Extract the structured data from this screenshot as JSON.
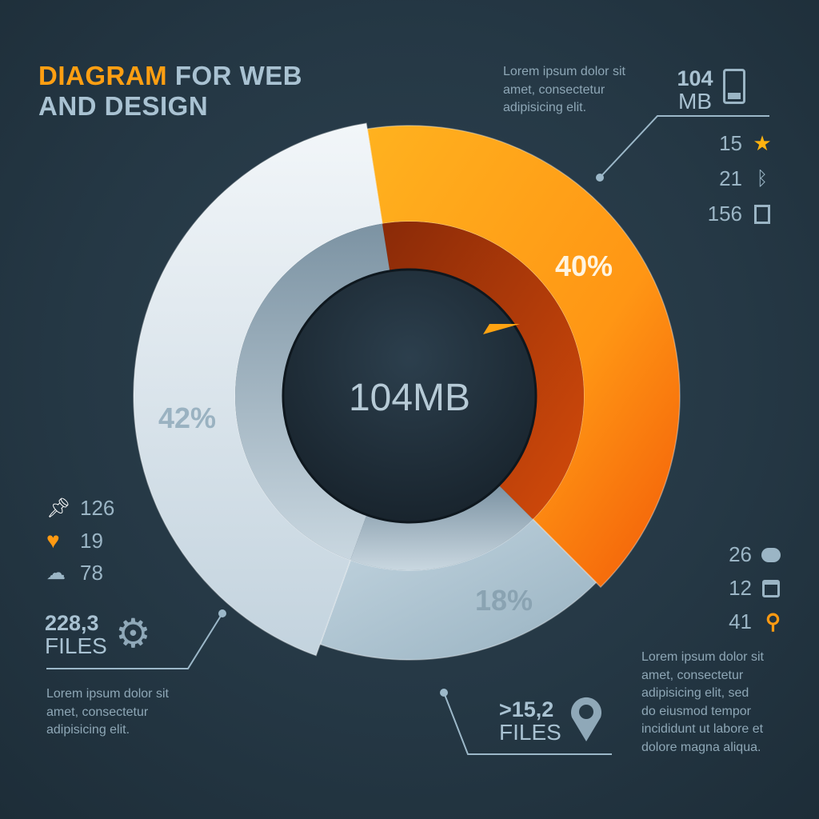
{
  "title": {
    "accent": "DIAGRAM",
    "rest_line1": " FOR WEB",
    "line2": "AND DESIGN"
  },
  "colors": {
    "accent": "#ff9f12",
    "background": "#263945",
    "text": "#a9c2d2",
    "orange": "#ff9a1a",
    "light": "#dfe9f0",
    "grey_blue": "#a6bfcd"
  },
  "center_label": "104MB",
  "chart_data": {
    "type": "pie",
    "style": "donut",
    "categories": [
      "orange segment",
      "blue-grey segment",
      "white segment"
    ],
    "values": [
      40,
      18,
      42
    ],
    "labels": [
      "40%",
      "18%",
      "42%"
    ],
    "colors": [
      "#ff9a1a",
      "#a6bfcd",
      "#dfe9f0"
    ]
  },
  "top_right": {
    "text": [
      "Lorem ipsum dolor sit",
      "amet, consectetur",
      "adipisicing elit."
    ],
    "size_value": "104",
    "size_unit": "MB",
    "size_icon": "tablet-icon",
    "stats": [
      {
        "value": "15",
        "icon": "star-icon"
      },
      {
        "value": "21",
        "icon": "bluetooth-icon"
      },
      {
        "value": "156",
        "icon": "film-icon"
      }
    ]
  },
  "left": {
    "stats": [
      {
        "value": "126",
        "icon": "pin-icon"
      },
      {
        "value": "19",
        "icon": "heart-icon"
      },
      {
        "value": "78",
        "icon": "cloud-upload-icon"
      }
    ],
    "files_value": "228,3",
    "files_label": "FILES",
    "files_icon": "gear-icon",
    "text": [
      "Lorem ipsum dolor sit",
      "amet, consectetur",
      "adipisicing elit."
    ]
  },
  "bottom_right": {
    "stats": [
      {
        "value": "26",
        "icon": "chat-icon"
      },
      {
        "value": "12",
        "icon": "calendar-icon"
      },
      {
        "value": "41",
        "icon": "search-icon"
      }
    ],
    "text": [
      "Lorem ipsum dolor sit",
      "amet, consectetur",
      "adipisicing elit, sed",
      "do eiusmod tempor",
      "incididunt ut labore et",
      "dolore magna aliqua."
    ],
    "files_value": ">15,2",
    "files_label": "FILES",
    "files_icon": "location-pin-icon"
  }
}
